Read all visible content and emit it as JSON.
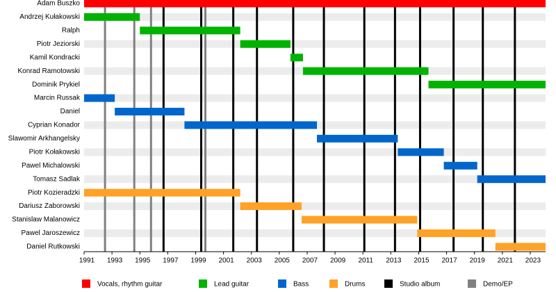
{
  "chart_data": {
    "type": "timeline",
    "xlim": [
      1991,
      2024.1
    ],
    "xticks": [
      1991,
      1993,
      1995,
      1997,
      1999,
      2001,
      2003,
      2005,
      2007,
      2009,
      2011,
      2013,
      2015,
      2017,
      2019,
      2021,
      2023
    ],
    "series": [
      {
        "name": "Vocals, rhythm guitar",
        "color": "#ff0000",
        "members": [
          {
            "name": "Adam Buszko",
            "values": [
              1991,
              2024.1
            ]
          }
        ]
      },
      {
        "name": "Lead guitar",
        "color": "#00b300",
        "members": [
          {
            "name": "Andrzej Kułakowski",
            "values": [
              1991,
              1995
            ]
          },
          {
            "name": "Ralph",
            "values": [
              1995,
              2002.2
            ]
          },
          {
            "name": "Piotr Jeziorski",
            "values": [
              2002.2,
              2005.8
            ]
          },
          {
            "name": "Kamil Kondracki",
            "values": [
              2005.8,
              2006.7
            ]
          },
          {
            "name": "Konrad Ramotowski",
            "values": [
              2006.7,
              2015.7
            ]
          },
          {
            "name": "Dominik Prykiel",
            "values": [
              2015.7,
              2024.1
            ]
          }
        ]
      },
      {
        "name": "Bass",
        "color": "#0066cc",
        "members": [
          {
            "name": "Marcin Russak",
            "values": [
              1991,
              1993.2
            ]
          },
          {
            "name": "Daniel",
            "values": [
              1993.2,
              1998.2
            ]
          },
          {
            "name": "Cyprian Konador",
            "values": [
              1998.2,
              2007.7
            ]
          },
          {
            "name": "Slawomir Arkhangelsky",
            "values": [
              2007.7,
              2013.5
            ]
          },
          {
            "name": "Piotr Kołakowski",
            "values": [
              2013.5,
              2016.8
            ]
          },
          {
            "name": "Pawel Michalowski",
            "values": [
              2016.8,
              2019.2
            ]
          },
          {
            "name": "Tomasz Sadlak",
            "values": [
              2019.2,
              2024.1
            ]
          }
        ]
      },
      {
        "name": "Drums",
        "color": "#ffa227",
        "members": [
          {
            "name": "Piotr Kozieradzki",
            "values": [
              1991,
              2002.2
            ]
          },
          {
            "name": "Dariusz Zaborowski",
            "values": [
              2002.2,
              2006.6
            ]
          },
          {
            "name": "Stanislaw Malanowicz",
            "values": [
              2006.6,
              2014.9
            ]
          },
          {
            "name": "Pawel Jaroszewicz",
            "values": [
              2014.9,
              2020.5
            ]
          },
          {
            "name": "Daniel Rutkowski",
            "values": [
              2020.5,
              2024.1
            ]
          }
        ]
      }
    ],
    "releases": [
      {
        "name": "Studio album",
        "color": "#000000",
        "values": [
          1996.7,
          1999.4,
          2001.7,
          2003.4,
          2006.0,
          2008.2,
          2011.1,
          2013.3,
          2015.1,
          2017.5,
          2019.6,
          2021.9
        ]
      },
      {
        "name": "Demo/EP",
        "color": "#808080",
        "values": [
          1992.5,
          1994.6,
          1995.8,
          1999.7
        ]
      }
    ]
  }
}
